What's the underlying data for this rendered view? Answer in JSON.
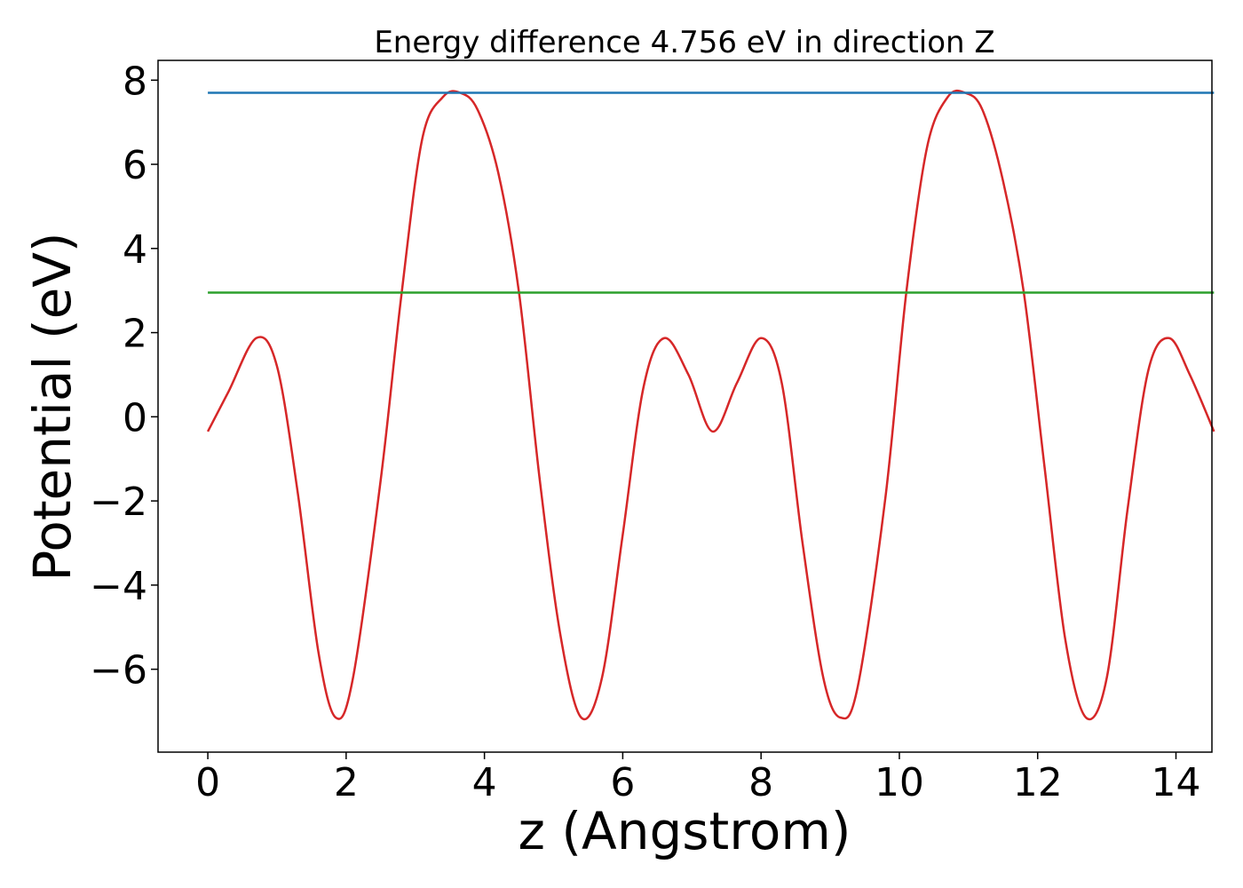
{
  "chart_data": {
    "type": "line",
    "title": "Energy difference 4.756 eV in direction Z",
    "xlabel": "z (Angstrom)",
    "ylabel": "Potential (eV)",
    "xlim": [
      -0.72,
      14.52
    ],
    "ylim": [
      -7.97,
      8.47
    ],
    "xticks": [
      0,
      2,
      4,
      6,
      8,
      10,
      12,
      14
    ],
    "yticks": [
      -6,
      -4,
      -2,
      0,
      2,
      4,
      6,
      8
    ],
    "xtick_labels": [
      "0",
      "2",
      "4",
      "6",
      "8",
      "10",
      "12",
      "14"
    ],
    "ytick_labels": [
      "−6",
      "−4",
      "−2",
      "0",
      "2",
      "4",
      "6",
      "8"
    ],
    "grid": false,
    "legend": "none",
    "series": [
      {
        "color": "#d62728",
        "x": [
          0,
          0.3,
          0.7,
          1.0,
          1.3,
          1.6,
          1.85,
          2.1,
          2.5,
          2.8,
          3.1,
          3.4,
          3.65,
          3.9,
          4.2,
          4.5,
          4.8,
          5.1,
          5.4,
          5.7,
          6.0,
          6.3,
          6.6,
          6.95,
          7.3,
          7.65,
          8.0,
          8.3,
          8.6,
          8.9,
          9.15,
          9.4,
          9.8,
          10.1,
          10.4,
          10.7,
          10.95,
          11.2,
          11.5,
          11.8,
          12.1,
          12.4,
          12.7,
          13.0,
          13.3,
          13.6,
          13.9,
          14.2,
          14.55
        ],
        "y": [
          -0.35,
          0.6,
          1.87,
          1.2,
          -1.8,
          -5.6,
          -7.15,
          -6.2,
          -1.5,
          2.9,
          6.6,
          7.6,
          7.7,
          7.3,
          5.8,
          2.95,
          -1.5,
          -5.2,
          -7.15,
          -6.2,
          -2.8,
          0.7,
          1.87,
          1.0,
          -0.35,
          0.8,
          1.87,
          0.8,
          -3.0,
          -6.2,
          -7.15,
          -6.4,
          -1.9,
          2.95,
          6.4,
          7.6,
          7.7,
          7.3,
          5.6,
          2.95,
          -1.2,
          -5.3,
          -7.15,
          -6.2,
          -2.2,
          1.1,
          1.87,
          1.0,
          -0.35
        ]
      },
      {
        "color": "#1f77b4",
        "x": [
          0,
          14.55
        ],
        "y": [
          7.7,
          7.7
        ]
      },
      {
        "color": "#2ca02c",
        "x": [
          0,
          14.55
        ],
        "y": [
          2.95,
          2.95
        ]
      }
    ]
  }
}
